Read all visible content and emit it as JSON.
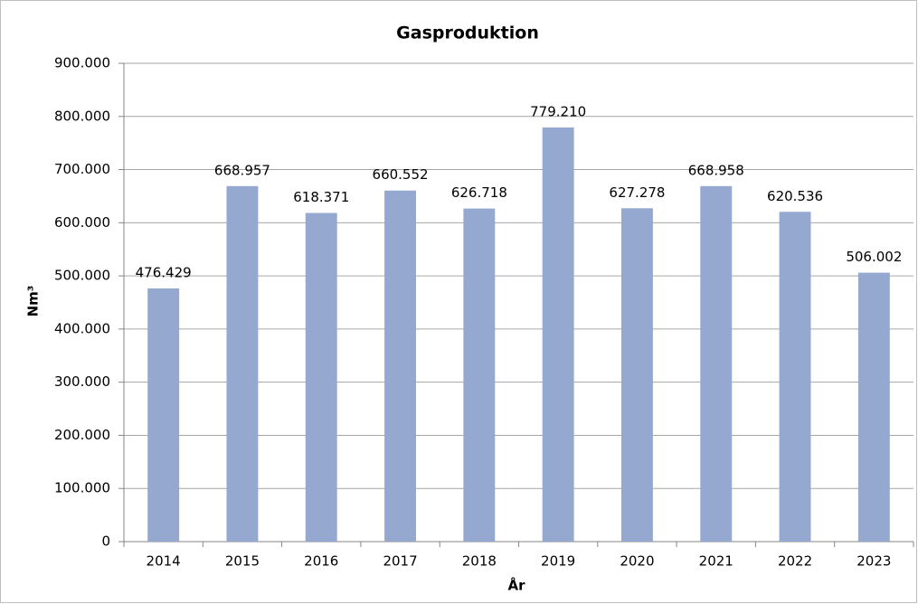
{
  "chart_data": {
    "type": "bar",
    "title": "Gasproduktion",
    "x_label": "År",
    "y_label": "Nm³",
    "categories": [
      "2014",
      "2015",
      "2016",
      "2017",
      "2018",
      "2019",
      "2020",
      "2021",
      "2022",
      "2023"
    ],
    "values": [
      476429,
      668957,
      618371,
      660552,
      626718,
      779210,
      627278,
      668958,
      620536,
      506002
    ],
    "value_labels": [
      "476.429",
      "668.957",
      "618.371",
      "660.552",
      "626.718",
      "779.210",
      "627.278",
      "668.958",
      "620.536",
      "506.002"
    ],
    "color": "#95a9d0",
    "ylim": [
      0,
      900000
    ],
    "yticks": [
      0,
      {
        "value": 100000,
        "label": "100.000"
      },
      {
        "value": 200000,
        "label": "200.000"
      },
      {
        "value": 300000,
        "label": "300.000"
      },
      {
        "value": 400000,
        "label": "400.000"
      },
      {
        "value": 500000,
        "label": "500.000"
      },
      {
        "value": 600000,
        "label": "600.000"
      },
      {
        "value": 700000,
        "label": "700.000"
      },
      {
        "value": 800000,
        "label": "800.000"
      },
      {
        "value": 900000,
        "label": "900.000"
      }
    ],
    "grid": true
  }
}
